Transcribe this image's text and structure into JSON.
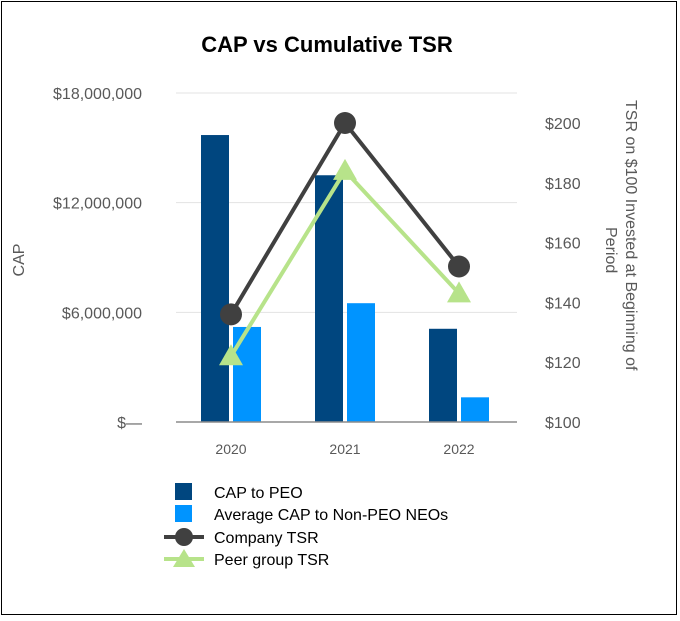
{
  "chart_data": {
    "type": "bar",
    "title": "CAP vs Cumulative TSR",
    "categories": [
      "2020",
      "2021",
      "2022"
    ],
    "series": [
      {
        "name": "CAP to PEO",
        "kind": "bar",
        "axis": "left",
        "color": "#00467F",
        "values": [
          15700000,
          13500000,
          5100000
        ]
      },
      {
        "name": "Average CAP to Non-PEO NEOs",
        "kind": "bar",
        "axis": "left",
        "color": "#0094FF",
        "values": [
          5200000,
          6500000,
          1350000
        ]
      },
      {
        "name": "Company TSR",
        "kind": "line",
        "axis": "right",
        "color": "#404040",
        "marker": "circle",
        "values": [
          136,
          200,
          152
        ]
      },
      {
        "name": "Peer group TSR",
        "kind": "line",
        "axis": "right",
        "color": "#B7E38A",
        "marker": "triangle",
        "values": [
          122,
          184,
          143
        ]
      }
    ],
    "ylabel": "CAP",
    "y2label_lines": [
      "TSR on $100 Invested at Beginning of",
      "Period"
    ],
    "ylim": [
      0,
      18000000
    ],
    "y2lim": [
      100,
      210
    ],
    "yticks": [
      {
        "value": 0,
        "label": "$—"
      },
      {
        "value": 6000000,
        "label": "$6,000,000"
      },
      {
        "value": 12000000,
        "label": "$12,000,000"
      },
      {
        "value": 18000000,
        "label": "$18,000,000"
      }
    ],
    "y2ticks": [
      {
        "value": 100,
        "label": "$100"
      },
      {
        "value": 120,
        "label": "$120"
      },
      {
        "value": 140,
        "label": "$140"
      },
      {
        "value": 160,
        "label": "$160"
      },
      {
        "value": 180,
        "label": "$180"
      },
      {
        "value": 200,
        "label": "$200"
      }
    ],
    "grid": true,
    "legend_position": "bottom-left"
  }
}
